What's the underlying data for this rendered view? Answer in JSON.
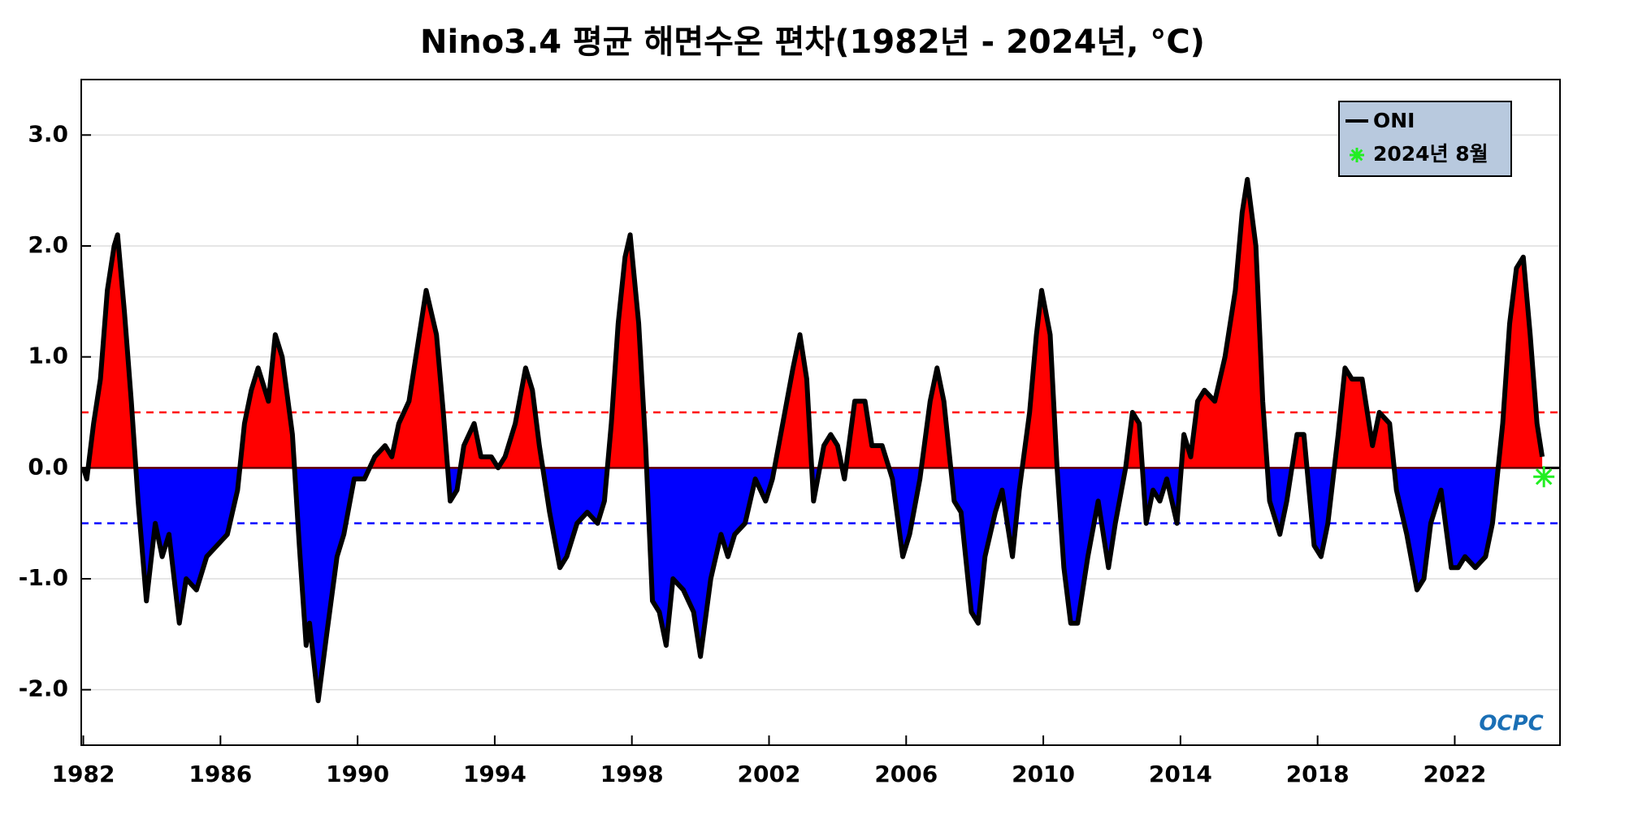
{
  "chart_data": {
    "type": "area",
    "title": "Nino3.4 평균 해면수온 편차(1982년 - 2024년, °C)",
    "x": [
      1982.0,
      1982.1,
      1982.3,
      1982.5,
      1982.7,
      1982.9,
      1983.0,
      1983.2,
      1983.4,
      1983.6,
      1983.84,
      1984.1,
      1984.3,
      1984.5,
      1984.8,
      1985.0,
      1985.3,
      1985.6,
      1985.9,
      1986.2,
      1986.5,
      1986.7,
      1986.9,
      1987.1,
      1987.4,
      1987.6,
      1987.8,
      1988.1,
      1988.3,
      1988.5,
      1988.6,
      1988.85,
      1989.1,
      1989.4,
      1989.6,
      1989.9,
      1990.2,
      1990.5,
      1990.8,
      1991.0,
      1991.2,
      1991.5,
      1991.8,
      1992.0,
      1992.3,
      1992.5,
      1992.7,
      1992.9,
      1993.1,
      1993.4,
      1993.6,
      1993.9,
      1994.1,
      1994.3,
      1994.6,
      1994.9,
      1995.1,
      1995.3,
      1995.6,
      1995.9,
      1996.1,
      1996.4,
      1996.7,
      1997.0,
      1997.2,
      1997.4,
      1997.6,
      1997.8,
      1997.95,
      1998.2,
      1998.4,
      1998.6,
      1998.8,
      1999.0,
      1999.2,
      1999.5,
      1999.8,
      2000.0,
      2000.3,
      2000.6,
      2000.8,
      2001.0,
      2001.3,
      2001.6,
      2001.9,
      2002.1,
      2002.4,
      2002.7,
      2002.9,
      2003.1,
      2003.3,
      2003.6,
      2003.8,
      2004.0,
      2004.2,
      2004.5,
      2004.8,
      2005.0,
      2005.3,
      2005.6,
      2005.9,
      2006.1,
      2006.4,
      2006.7,
      2006.9,
      2007.1,
      2007.4,
      2007.6,
      2007.9,
      2008.1,
      2008.3,
      2008.6,
      2008.8,
      2009.1,
      2009.3,
      2009.6,
      2009.8,
      2009.95,
      2010.2,
      2010.4,
      2010.6,
      2010.8,
      2011.0,
      2011.3,
      2011.6,
      2011.9,
      2012.1,
      2012.4,
      2012.6,
      2012.8,
      2013.0,
      2013.2,
      2013.4,
      2013.6,
      2013.9,
      2014.1,
      2014.3,
      2014.5,
      2014.7,
      2015.0,
      2015.3,
      2015.6,
      2015.8,
      2015.95,
      2016.2,
      2016.4,
      2016.6,
      2016.9,
      2017.1,
      2017.4,
      2017.6,
      2017.9,
      2018.1,
      2018.3,
      2018.6,
      2018.8,
      2019.0,
      2019.3,
      2019.6,
      2019.8,
      2020.1,
      2020.3,
      2020.6,
      2020.9,
      2021.1,
      2021.3,
      2021.6,
      2021.9,
      2022.1,
      2022.3,
      2022.6,
      2022.9,
      2023.1,
      2023.4,
      2023.6,
      2023.8,
      2024.0,
      2024.2,
      2024.4,
      2024.55
    ],
    "series": [
      {
        "name": "ONI",
        "color": "#000000",
        "values": [
          0.0,
          -0.1,
          0.4,
          0.8,
          1.6,
          2.0,
          2.1,
          1.4,
          0.6,
          -0.3,
          -1.2,
          -0.5,
          -0.8,
          -0.6,
          -1.4,
          -1.0,
          -1.1,
          -0.8,
          -0.7,
          -0.6,
          -0.2,
          0.4,
          0.7,
          0.9,
          0.6,
          1.2,
          1.0,
          0.3,
          -0.7,
          -1.6,
          -1.4,
          -2.1,
          -1.5,
          -0.8,
          -0.6,
          -0.1,
          -0.1,
          0.1,
          0.2,
          0.1,
          0.4,
          0.6,
          1.2,
          1.6,
          1.2,
          0.5,
          -0.3,
          -0.2,
          0.2,
          0.4,
          0.1,
          0.1,
          0.0,
          0.1,
          0.4,
          0.9,
          0.7,
          0.2,
          -0.4,
          -0.9,
          -0.8,
          -0.5,
          -0.4,
          -0.5,
          -0.3,
          0.4,
          1.3,
          1.9,
          2.1,
          1.3,
          0.2,
          -1.2,
          -1.3,
          -1.6,
          -1.0,
          -1.1,
          -1.3,
          -1.7,
          -1.0,
          -0.6,
          -0.8,
          -0.6,
          -0.5,
          -0.1,
          -0.3,
          -0.1,
          0.4,
          0.9,
          1.2,
          0.8,
          -0.3,
          0.2,
          0.3,
          0.2,
          -0.1,
          0.6,
          0.6,
          0.2,
          0.2,
          -0.1,
          -0.8,
          -0.6,
          -0.1,
          0.6,
          0.9,
          0.6,
          -0.3,
          -0.4,
          -1.3,
          -1.4,
          -0.8,
          -0.4,
          -0.2,
          -0.8,
          -0.2,
          0.5,
          1.2,
          1.6,
          1.2,
          0.0,
          -0.9,
          -1.4,
          -1.4,
          -0.8,
          -0.3,
          -0.9,
          -0.5,
          0.0,
          0.5,
          0.4,
          -0.5,
          -0.2,
          -0.3,
          -0.1,
          -0.5,
          0.3,
          0.1,
          0.6,
          0.7,
          0.6,
          1.0,
          1.6,
          2.3,
          2.6,
          2.0,
          0.6,
          -0.3,
          -0.6,
          -0.3,
          0.3,
          0.3,
          -0.7,
          -0.8,
          -0.5,
          0.3,
          0.9,
          0.8,
          0.8,
          0.2,
          0.5,
          0.4,
          -0.2,
          -0.6,
          -1.1,
          -1.0,
          -0.5,
          -0.2,
          -0.9,
          -0.9,
          -0.8,
          -0.9,
          -0.8,
          -0.5,
          0.4,
          1.3,
          1.8,
          1.9,
          1.2,
          0.4,
          0.1
        ]
      }
    ],
    "fill": {
      "positive_color": "#ff0000",
      "negative_color": "#0000ff"
    },
    "thresholds": [
      {
        "value": 0.5,
        "color": "#ff0000"
      },
      {
        "value": -0.5,
        "color": "#0000ff"
      }
    ],
    "marker": {
      "name": "2024년 8월",
      "x": 2024.6,
      "value": -0.08,
      "color": "#22ee22"
    },
    "xlim": [
      1981.94,
      2025.07
    ],
    "ylim": [
      -2.5,
      3.5
    ],
    "xticks": [
      1982,
      1986,
      1990,
      1994,
      1998,
      2002,
      2006,
      2010,
      2014,
      2018,
      2022
    ],
    "yticks": [
      {
        "value": 3,
        "label": "3.0"
      },
      {
        "value": 2,
        "label": "2.0"
      },
      {
        "value": 1,
        "label": "1.0"
      },
      {
        "value": 0,
        "label": "0.0"
      },
      {
        "value": -1,
        "label": "-1.0"
      },
      {
        "value": -2,
        "label": "-2.0"
      }
    ],
    "grid": true,
    "legend": "upper right",
    "logo": "OCPC"
  }
}
